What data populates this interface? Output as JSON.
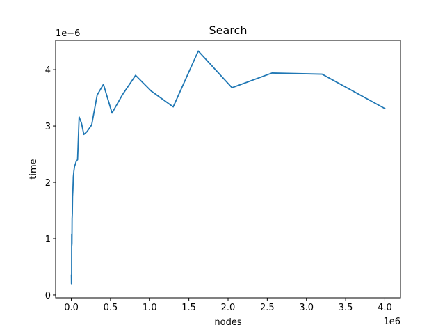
{
  "chart_data": {
    "type": "line",
    "title": "Search",
    "xlabel": "nodes",
    "ylabel": "time",
    "x_offset_label": "1e6",
    "y_offset_label": "1e−6",
    "xlim": [
      -200000,
      4200000
    ],
    "ylim": [
      -0.05,
      4.52
    ],
    "grid": false,
    "series_color": "#1f77b4",
    "x_ticks": [
      0,
      500000,
      1000000,
      1500000,
      2000000,
      2500000,
      3000000,
      3500000,
      4000000
    ],
    "x_tick_labels": [
      "0.0",
      "0.5",
      "1.0",
      "1.5",
      "2.0",
      "2.5",
      "3.0",
      "3.5",
      "4.0"
    ],
    "y_ticks": [
      0,
      1,
      2,
      3,
      4
    ],
    "y_tick_labels": [
      "0",
      "1",
      "2",
      "3",
      "4"
    ],
    "series": [
      {
        "x": [
          1000,
          2000,
          3000,
          4000,
          5000,
          6000,
          8000,
          10000,
          13000,
          16000,
          20000,
          26000,
          33000,
          41000,
          51000,
          64000,
          80000,
          100000,
          130000,
          160000,
          200000,
          260000,
          330000,
          410000,
          520000,
          650000,
          820000,
          1020000,
          1300000,
          1620000,
          2050000,
          2560000,
          3200000,
          4000000
        ],
        "y": [
          0.35,
          0.2,
          0.22,
          0.25,
          1.08,
          0.88,
          0.92,
          1.35,
          1.45,
          1.75,
          1.85,
          2.1,
          2.2,
          2.28,
          2.32,
          2.38,
          2.4,
          3.16,
          3.05,
          2.85,
          2.9,
          3.02,
          3.55,
          3.74,
          3.23,
          3.55,
          3.9,
          3.62,
          3.34,
          4.33,
          3.68,
          3.94,
          3.92,
          3.31
        ]
      }
    ]
  }
}
